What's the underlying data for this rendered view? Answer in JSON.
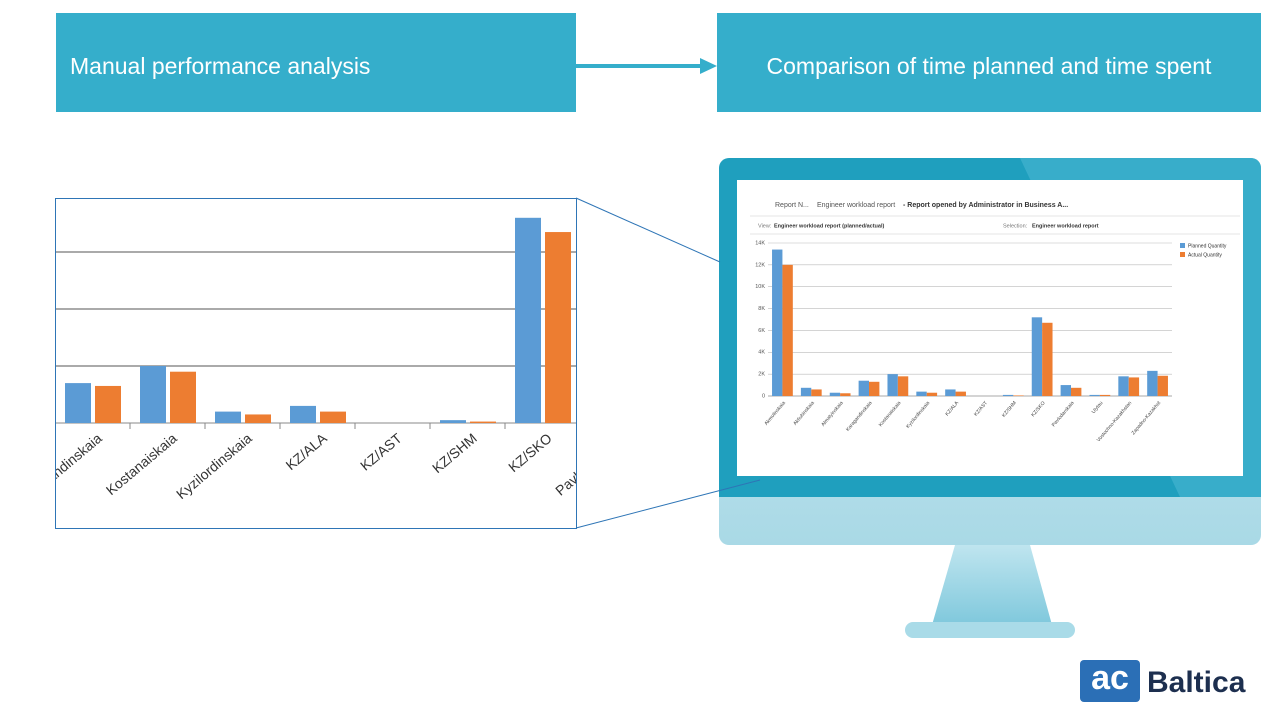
{
  "header": {
    "left": "Manual performance analysis",
    "right": "Comparison of time planned and time spent"
  },
  "report": {
    "breadcrumb": "Report N...",
    "name": "Engineer workload report",
    "status": "- Report opened by Administrator in Business A...",
    "view_label": "View:",
    "view_value": "Engineer workload report (planned/actual)",
    "selection_label": "Selection:",
    "selection_value": "Engineer workload report"
  },
  "chart_data": {
    "type": "bar",
    "categories": [
      "Akmolinskaia",
      "Aktiubinskaia",
      "Almatyinskaia",
      "Karagandinskaia",
      "Kostanaiskaia",
      "Kyzilordinskaia",
      "KZ/ALA",
      "KZ/AST",
      "KZ/SHM",
      "KZ/SKO",
      "Pavlodarskaia",
      "Ulytau",
      "Vostochno-Kazakhstan",
      "Zapadno-Kazakhst"
    ],
    "series": [
      {
        "name": "Planned Quantity",
        "color": "#5b9bd5",
        "values": [
          13400,
          750,
          300,
          1400,
          2000,
          400,
          600,
          0,
          100,
          7200,
          1000,
          100,
          1800,
          2300
        ]
      },
      {
        "name": "Actual Quantity",
        "color": "#ed7d31",
        "values": [
          12000,
          600,
          250,
          1300,
          1800,
          300,
          400,
          0,
          50,
          6700,
          750,
          100,
          1700,
          1850
        ]
      }
    ],
    "ylim": [
      0,
      14000
    ],
    "yticks": [
      0,
      {
        "value": 2000,
        "label": "2K"
      },
      {
        "value": 4000,
        "label": "4K"
      },
      {
        "value": 6000,
        "label": "6K"
      },
      {
        "value": 8000,
        "label": "8K"
      },
      {
        "value": 10000,
        "label": "10K"
      },
      {
        "value": 12000,
        "label": "12K"
      },
      {
        "value": 14000,
        "label": "14K"
      }
    ],
    "grid": true,
    "legend": "top-right"
  },
  "logo": {
    "mark": "ac",
    "name": "Baltica"
  }
}
